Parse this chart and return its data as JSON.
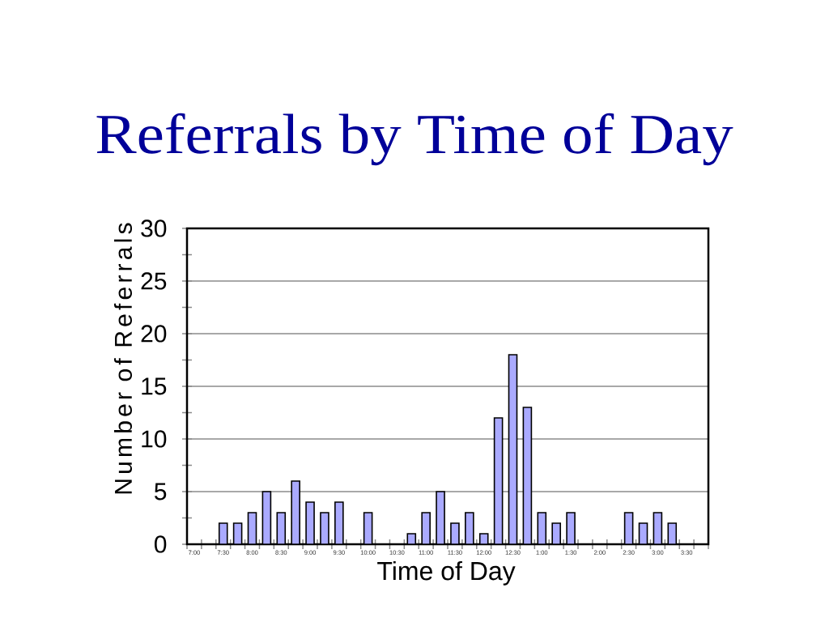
{
  "chart_data": {
    "type": "bar",
    "title": "Referrals by Time of Day",
    "xlabel": "Time of Day",
    "ylabel": "Number of Referrals",
    "categories": [
      "7:00",
      null,
      "7:30",
      null,
      "8:00",
      null,
      "8:30",
      null,
      "9:00",
      null,
      "9:30",
      null,
      "10:00",
      null,
      "10:30",
      null,
      "11:00",
      null,
      "11:30",
      null,
      "12:00",
      null,
      "12:30",
      null,
      "1:00",
      null,
      "1:30",
      null,
      "2:00",
      null,
      "2:30",
      null,
      "3:00",
      null,
      "3:30",
      null
    ],
    "values": [
      null,
      null,
      2,
      2,
      3,
      5,
      3,
      6,
      4,
      3,
      4,
      null,
      3,
      null,
      null,
      1,
      3,
      5,
      2,
      3,
      1,
      12,
      18,
      13,
      3,
      2,
      3,
      null,
      null,
      null,
      3,
      2,
      3,
      2,
      null,
      null
    ],
    "color": "#aaaaff",
    "ylim": [
      0,
      30
    ],
    "yticks": [
      0,
      {
        "value": 2.5,
        "label": null
      },
      5,
      {
        "value": 7.5,
        "label": null
      },
      10,
      {
        "value": 12.5,
        "label": null
      },
      15,
      {
        "value": 17.5,
        "label": null
      },
      20,
      {
        "value": 22.5,
        "label": null
      },
      25,
      {
        "value": 27.5,
        "label": null
      },
      30
    ],
    "grid": "y"
  }
}
